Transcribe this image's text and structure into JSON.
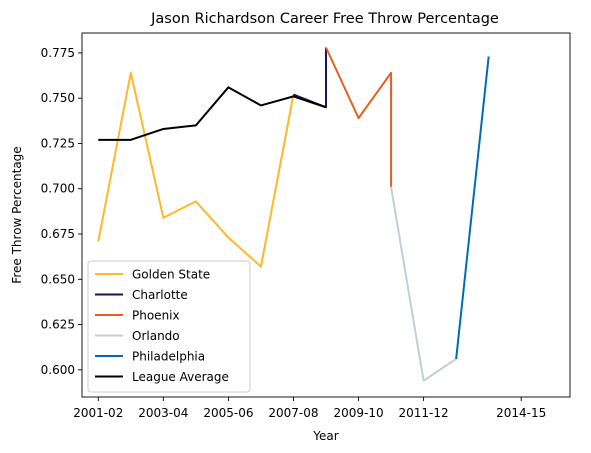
{
  "chart_data": {
    "type": "line",
    "title": "Jason Richardson Career Free Throw Percentage",
    "xlabel": "Year",
    "ylabel": "Free Throw Percentage",
    "xlim": [
      2000.5,
      2015.5
    ],
    "ylim": [
      0.585,
      0.786
    ],
    "x_ticks": [
      {
        "x": 2001,
        "label": "2001-02"
      },
      {
        "x": 2003,
        "label": "2003-04"
      },
      {
        "x": 2005,
        "label": "2005-06"
      },
      {
        "x": 2007,
        "label": "2007-08"
      },
      {
        "x": 2009,
        "label": "2009-10"
      },
      {
        "x": 2011,
        "label": "2011-12"
      },
      {
        "x": 2014,
        "label": "2014-15"
      }
    ],
    "y_ticks": [
      {
        "y": 0.6,
        "label": "0.600"
      },
      {
        "y": 0.625,
        "label": "0.625"
      },
      {
        "y": 0.65,
        "label": "0.650"
      },
      {
        "y": 0.675,
        "label": "0.675"
      },
      {
        "y": 0.7,
        "label": "0.700"
      },
      {
        "y": 0.725,
        "label": "0.725"
      },
      {
        "y": 0.75,
        "label": "0.750"
      },
      {
        "y": 0.775,
        "label": "0.775"
      }
    ],
    "legend_position": "lower-left",
    "series": [
      {
        "name": "Golden State",
        "color": "#FDB927",
        "x": [
          2001,
          2002,
          2003,
          2004,
          2005,
          2006,
          2007
        ],
        "y": [
          0.671,
          0.764,
          0.684,
          0.693,
          0.673,
          0.657,
          0.752
        ]
      },
      {
        "name": "Charlotte",
        "color": "#1D1160",
        "x": [
          2007,
          2008,
          2008
        ],
        "y": [
          0.752,
          0.745,
          0.778
        ]
      },
      {
        "name": "Phoenix",
        "color": "#E56020",
        "x": [
          2008,
          2009,
          2010,
          2010
        ],
        "y": [
          0.778,
          0.739,
          0.764,
          0.701
        ]
      },
      {
        "name": "Orlando",
        "color": "#C4CED4",
        "x": [
          2010,
          2011,
          2012
        ],
        "y": [
          0.701,
          0.594,
          0.606
        ]
      },
      {
        "name": "Philadelphia",
        "color": "#006BB6",
        "x": [
          2012,
          2013
        ],
        "y": [
          0.606,
          0.773
        ]
      },
      {
        "name": "League Average",
        "color": "#000000",
        "x": [
          2001,
          2002,
          2003,
          2004,
          2005,
          2006,
          2007,
          2008
        ],
        "y": [
          0.727,
          0.727,
          0.733,
          0.735,
          0.756,
          0.746,
          0.751,
          0.745
        ]
      }
    ]
  }
}
